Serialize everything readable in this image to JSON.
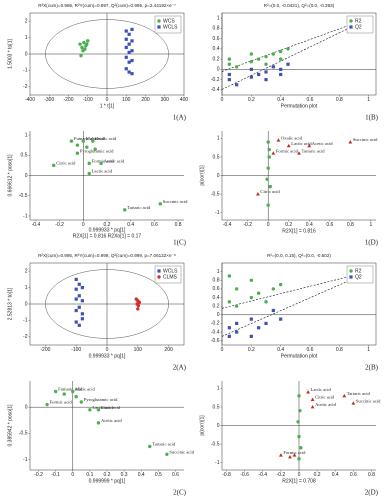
{
  "chart_data": [
    {
      "type": "scatter",
      "panel": "1(A)",
      "title": "R²X(cum)=0.986, R²Y(cum)=0.997, Q²(cum)=0.995, p=2.44192×e⁻⁷",
      "xlabel": "1 * t[1]",
      "ylabel": "1.5003 * to[1]",
      "xlim": [
        -400,
        400
      ],
      "xticks": [
        -400,
        -300,
        -200,
        -100,
        0,
        100,
        200,
        300,
        400
      ],
      "ylim": [
        -2.5,
        2.5
      ],
      "yticks": [
        -2,
        -1,
        0,
        1,
        2
      ],
      "frame": true,
      "origin_lines": true,
      "ellipse": true,
      "legend": "top-right",
      "series": [
        {
          "name": "WCS",
          "color": "#4caf50",
          "marker": "circle",
          "x": [
            -140,
            -130,
            -120,
            -110,
            -100,
            -135,
            -125,
            -115,
            -105
          ],
          "y": [
            0.6,
            0.4,
            0.7,
            0.5,
            0.8,
            -0.1,
            0.2,
            0.3,
            0.6
          ]
        },
        {
          "name": "WCLS",
          "color": "#3f51b5",
          "marker": "square",
          "x": [
            100,
            100,
            100,
            100,
            100,
            115,
            115,
            115,
            115,
            115,
            130,
            130,
            130,
            130,
            130
          ],
          "y": [
            1.4,
            0.9,
            0.4,
            -0.2,
            -0.9,
            1.2,
            0.6,
            0.1,
            -0.5,
            -1.1,
            1.5,
            0.8,
            0.2,
            -0.4,
            -1.2
          ]
        }
      ]
    },
    {
      "type": "scatter",
      "panel": "1(B)",
      "title": "R²=(0.0, -0.0421), Q²=(0.0, -0.393)",
      "xlabel": "Permutation plot",
      "xlim": [
        0,
        1.05
      ],
      "xticks": [
        0,
        0.2,
        0.4,
        0.6,
        0.8,
        1
      ],
      "ylim": [
        -0.5,
        1.1
      ],
      "yticks": [
        -0.4,
        -0.2,
        0,
        0.2,
        0.4,
        0.6,
        0.8,
        1
      ],
      "frame": true,
      "origin_lines": true,
      "legend": "top-right",
      "series": [
        {
          "name": "R2",
          "color": "#4caf50",
          "marker": "circle",
          "fit_intercept": -0.0421,
          "x": [
            0.05,
            0.05,
            0.1,
            0.2,
            0.2,
            0.25,
            0.3,
            0.3,
            0.35,
            0.4,
            0.4,
            0.45,
            1
          ],
          "y": [
            0.1,
            0.2,
            0.05,
            0.15,
            0.3,
            0.2,
            0.25,
            0.1,
            0.3,
            0.35,
            0.2,
            0.4,
            1
          ]
        },
        {
          "name": "Q2",
          "color": "#3f51b5",
          "marker": "square",
          "fit_intercept": -0.393,
          "x": [
            0.05,
            0.05,
            0.1,
            0.2,
            0.2,
            0.25,
            0.3,
            0.3,
            0.35,
            0.4,
            0.4,
            0.45,
            1
          ],
          "y": [
            -0.2,
            -0.1,
            -0.3,
            -0.15,
            0,
            -0.1,
            -0.2,
            -0.05,
            0.05,
            -0.1,
            0,
            0.1,
            0.99
          ]
        }
      ]
    },
    {
      "type": "scatter",
      "panel": "1(C)",
      "xlabel": "R2X[1] = 0.816 R2Xo[1] = 0.17",
      "ylabel": "0.666612 * poso[1]",
      "xlabel2": "0.999933 * pq[1]",
      "xlim": [
        -0.45,
        0.85
      ],
      "xticks": [
        -0.4,
        -0.2,
        0,
        0.2,
        0.4,
        0.6,
        0.8
      ],
      "ylim": [
        -1.1,
        1.1
      ],
      "yticks": [
        -1,
        -0.5,
        0,
        0.5,
        1
      ],
      "frame": false,
      "origin_lines": true,
      "series": [
        {
          "color": "#4caf50",
          "marker": "circle",
          "label_color": "#2e6b2e",
          "x": [
            -0.1,
            0.0,
            0.08,
            -0.05,
            -0.25,
            0.05,
            0.15,
            0.05,
            0.65,
            0.35,
            -0.05,
            0.03,
            0.1
          ],
          "y": [
            0.85,
            0.85,
            0.85,
            0.55,
            0.25,
            0.3,
            0.3,
            0.05,
            -0.7,
            -0.85,
            0.75,
            0.7,
            0.65
          ],
          "labels": [
            "Fumaric acid",
            "Malic acid",
            "Oxalic acid",
            "Pyroglutamic acid",
            "Citric acid",
            "Formic acid",
            "Acetic acid",
            "Lactic acid",
            "Succinic acid",
            "Tartaric acid",
            null,
            null,
            null
          ]
        }
      ]
    },
    {
      "type": "scatter",
      "panel": "1(D)",
      "xlabel": "R2X[1] = 0.816",
      "ylabel": "p(corr)[1]",
      "xlim": [
        -0.45,
        1.05
      ],
      "xticks": [
        -0.4,
        -0.2,
        0,
        0.2,
        0.4,
        0.6,
        0.8,
        1
      ],
      "ylim": [
        -1.2,
        1.2
      ],
      "yticks": [
        -1,
        -0.5,
        0,
        0.5,
        1
      ],
      "frame": false,
      "origin_lines": true,
      "series": [
        {
          "color": "#4caf50",
          "marker": "circle",
          "x": [
            0,
            0.01,
            0,
            0.02,
            0,
            0.01,
            -0.01
          ],
          "y": [
            0.9,
            0.5,
            0.2,
            -0.3,
            -0.8,
            0.7,
            -0.1
          ]
        },
        {
          "color": "#c62828",
          "marker": "triangle",
          "label_color": "#b71c1c",
          "x": [
            0.1,
            0.05,
            0.2,
            0.4,
            0.3,
            0.8,
            -0.1
          ],
          "y": [
            0.95,
            0.6,
            0.8,
            0.8,
            0.6,
            0.9,
            -0.5
          ],
          "labels": [
            "Oxalic acid",
            "Formic acid",
            "Lactic acid",
            "Acetic acid",
            "Tartaric acid",
            "Succinic acid",
            "Citric acid"
          ]
        }
      ]
    },
    {
      "type": "scatter",
      "panel": "2(A)",
      "title": "R²X(cum)=0.995, R²Y(cum)=0.999, Q²(cum)=0.999, p=7.06132×e⁻⁸",
      "xlabel": "0.999933 * pq[1]",
      "ylabel": "2.52813 * to[1]",
      "xlim": [
        -250,
        250
      ],
      "xticks": [
        -200,
        -100,
        0,
        100,
        200
      ],
      "ylim": [
        -2.5,
        2.5
      ],
      "yticks": [
        -2,
        -1,
        0,
        1,
        2
      ],
      "frame": true,
      "origin_lines": true,
      "ellipse": true,
      "legend": "top-right",
      "series": [
        {
          "name": "WCLS",
          "color": "#3f51b5",
          "marker": "square",
          "x": [
            -100,
            -100,
            -100,
            -100,
            -100,
            -90,
            -90,
            -90,
            -90,
            -80,
            -80,
            -80,
            -80
          ],
          "y": [
            1.5,
            0.9,
            0.3,
            -0.4,
            -1.1,
            1.2,
            0.5,
            -0.2,
            -1.3,
            1.0,
            0.2,
            -0.6,
            -0.9
          ]
        },
        {
          "name": "CLMS",
          "color": "#d32f2f",
          "marker": "circle",
          "x": [
            95,
            100,
            105,
            98,
            102,
            100
          ],
          "y": [
            0.3,
            0.2,
            0.1,
            0,
            -0.1,
            -0.3
          ]
        }
      ]
    },
    {
      "type": "scatter",
      "panel": "2(B)",
      "title": "R²=(0.0, 0.15), Q²=(0.0, -0.502)",
      "xlabel": "Permutation plot",
      "xlim": [
        0,
        1.05
      ],
      "xticks": [
        0,
        0.2,
        0.4,
        0.6,
        0.8,
        1
      ],
      "ylim": [
        -0.7,
        1.2
      ],
      "yticks": [
        -0.6,
        -0.4,
        -0.2,
        0,
        0.2,
        0.4,
        0.6,
        0.8,
        1
      ],
      "frame": true,
      "origin_lines": true,
      "legend": "top-right",
      "series": [
        {
          "name": "R2",
          "color": "#4caf50",
          "marker": "circle",
          "fit_intercept": 0.15,
          "x": [
            0.05,
            0.05,
            0.1,
            0.1,
            0.2,
            0.2,
            0.25,
            0.3,
            0.35,
            0.4,
            1
          ],
          "y": [
            0.9,
            0.3,
            0.6,
            0.2,
            0.8,
            0.4,
            0.5,
            0.3,
            0.6,
            0.7,
            1
          ]
        },
        {
          "name": "Q2",
          "color": "#3f51b5",
          "marker": "square",
          "fit_intercept": -0.502,
          "x": [
            0.05,
            0.05,
            0.1,
            0.1,
            0.2,
            0.2,
            0.25,
            0.3,
            0.35,
            0.4,
            1
          ],
          "y": [
            -0.5,
            -0.3,
            -0.4,
            -0.2,
            -0.5,
            -0.1,
            -0.3,
            -0.2,
            0.1,
            -0.1,
            0.99
          ]
        }
      ]
    },
    {
      "type": "scatter",
      "panel": "2(C)",
      "xlabel": "0.999999 * pq[1]",
      "ylabel": "0.385942 * poso[1]",
      "xlim": [
        -0.25,
        0.65
      ],
      "xticks": [
        -0.2,
        -0.1,
        0,
        0.1,
        0.2,
        0.3,
        0.4,
        0.5,
        0.6
      ],
      "ylim": [
        -1.2,
        0.5
      ],
      "yticks": [
        -1,
        -0.5,
        0
      ],
      "frame": false,
      "origin_lines": true,
      "series": [
        {
          "color": "#4caf50",
          "marker": "circle",
          "label_color": "#2e6b2e",
          "x": [
            -0.1,
            0,
            -0.15,
            0.05,
            0.1,
            0.15,
            0.15,
            0.45,
            0.55,
            -0.05,
            0.02
          ],
          "y": [
            0.3,
            0.3,
            0.05,
            0.1,
            -0.05,
            -0.05,
            -0.3,
            -0.75,
            -0.9,
            0.25,
            0.2
          ],
          "labels": [
            "Fumaric acid",
            "Malic acid",
            "Formic acid",
            "Pyroglutamic acid",
            "Lactic acid",
            "Citric acid",
            "Acetic acid",
            "Tartaric acid",
            "Succinic acid",
            null,
            null
          ]
        }
      ]
    },
    {
      "type": "scatter",
      "panel": "2(D)",
      "xlabel": "R2X[1] = 0.708",
      "ylabel": "p(corr)[1]",
      "xlim": [
        -0.85,
        0.85
      ],
      "xticks": [
        -0.8,
        -0.6,
        -0.4,
        -0.2,
        0,
        0.2,
        0.4,
        0.6,
        0.8
      ],
      "ylim": [
        -1.2,
        1.2
      ],
      "yticks": [
        -1,
        -0.5,
        0,
        0.5,
        1
      ],
      "frame": false,
      "origin_lines": true,
      "series": [
        {
          "color": "#4caf50",
          "marker": "circle",
          "x": [
            0,
            0.01,
            -0.01,
            0,
            0.02,
            0
          ],
          "y": [
            0.8,
            0.4,
            0.1,
            -0.3,
            -0.6,
            -0.9
          ]
        },
        {
          "color": "#c62828",
          "marker": "triangle",
          "label_color": "#b71c1c",
          "x": [
            0.1,
            0.15,
            0.5,
            0.6,
            0.15,
            -0.2,
            -0.1,
            -0.05
          ],
          "y": [
            0.9,
            0.7,
            0.8,
            0.6,
            0.5,
            -0.8,
            -0.85,
            -0.8
          ],
          "labels": [
            "Lactic acid",
            "Citric acid",
            "Tartaric acid",
            "Succinic acid",
            "Acetic acid",
            "Formic acid",
            null,
            null
          ]
        }
      ]
    }
  ]
}
